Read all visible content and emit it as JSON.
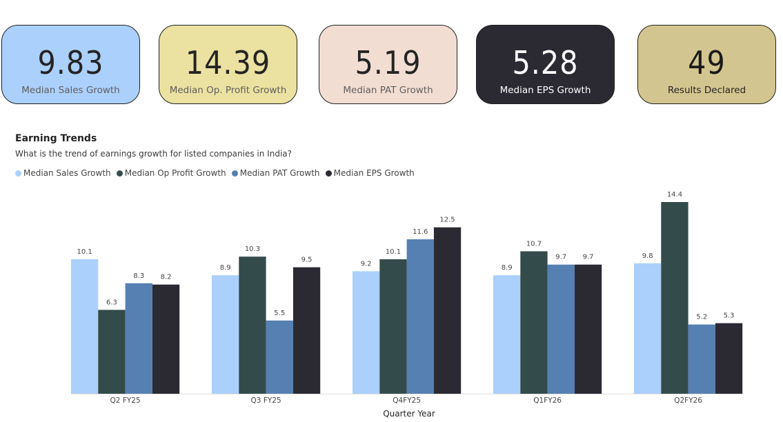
{
  "kpis": [
    {
      "value": "9.83",
      "label": "Median Sales Growth",
      "bg": "#abd0fb"
    },
    {
      "value": "14.39",
      "label": "Median Op. Profit Growth",
      "bg": "#ebe1a1"
    },
    {
      "value": "5.19",
      "label": "Median PAT Growth",
      "bg": "#f2ddd3"
    },
    {
      "value": "5.28",
      "label": "Median EPS Growth",
      "bg": "#2b2a33"
    },
    {
      "value": "49",
      "label": "Results Declared",
      "bg": "#d3c58f"
    }
  ],
  "chart_data": {
    "type": "bar",
    "title": "Earning Trends",
    "subtitle": "What is the trend of earnings growth for listed companies in India?",
    "xlabel": "Quarter Year",
    "ylabel": "",
    "categories": [
      "Q2 FY25",
      "Q3 FY25",
      "Q4FY25",
      "Q1FY26",
      "Q2FY26"
    ],
    "series": [
      {
        "name": "Median Sales Growth",
        "color": "#abd0fb",
        "values": [
          10.1,
          8.9,
          9.2,
          8.9,
          9.8
        ]
      },
      {
        "name": "Median Op Profit Growth",
        "color": "#344b4b",
        "values": [
          6.3,
          10.3,
          10.1,
          10.7,
          14.4
        ]
      },
      {
        "name": "Median PAT Growth",
        "color": "#5580b1",
        "values": [
          8.3,
          5.5,
          11.6,
          9.7,
          5.2
        ]
      },
      {
        "name": "Median EPS Growth",
        "color": "#2b2a33",
        "values": [
          8.2,
          9.5,
          12.5,
          9.7,
          5.3
        ]
      }
    ],
    "ylim": [
      0,
      14.4
    ],
    "grid": false,
    "legend_position": "top-left"
  }
}
